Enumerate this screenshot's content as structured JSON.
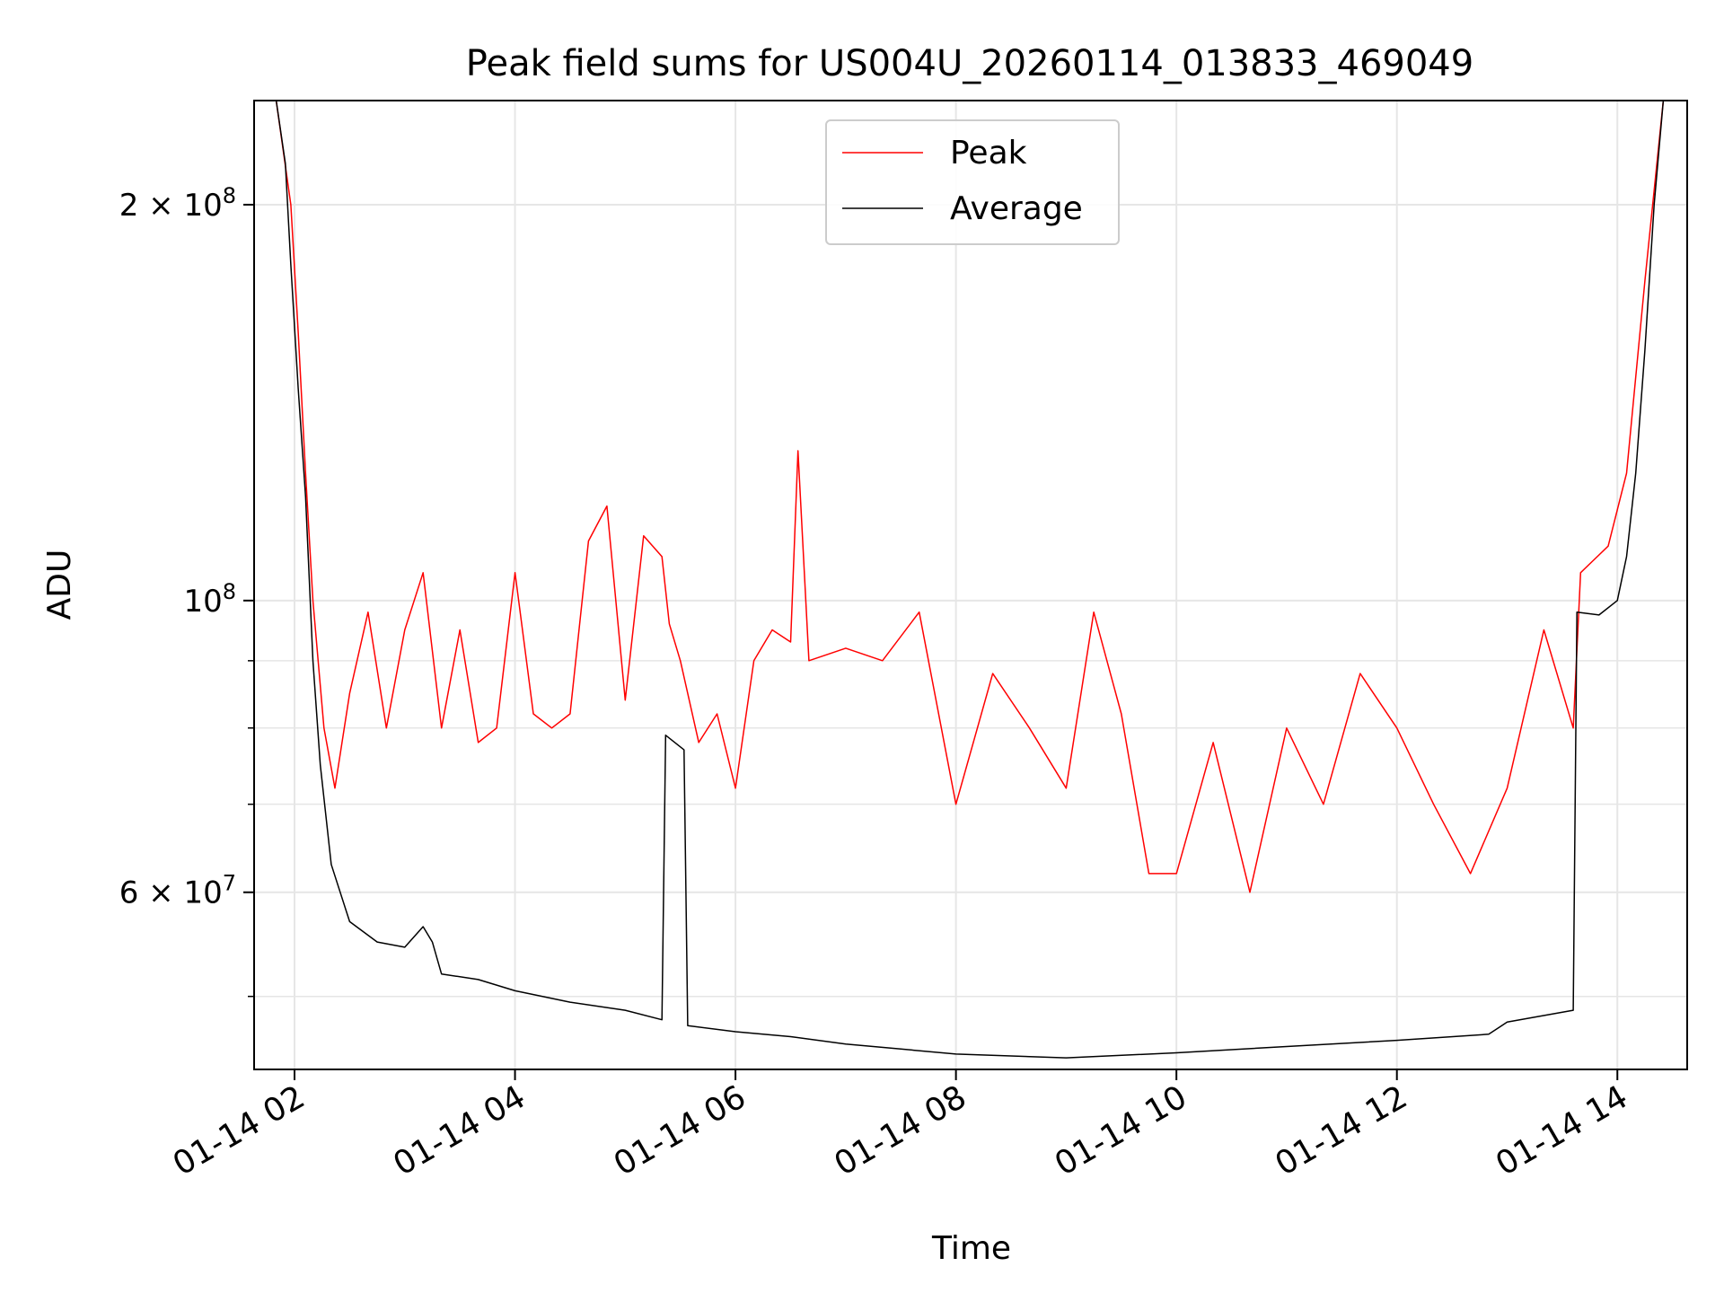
{
  "chart_data": {
    "type": "line",
    "title": "Peak field sums for US004U_20260114_013833_469049",
    "xlabel": "Time",
    "ylabel": "ADU",
    "x_ticks": [
      "01-14 02",
      "01-14 04",
      "01-14 06",
      "01-14 08",
      "01-14 10",
      "01-14 12",
      "01-14 14"
    ],
    "y_ticks": [
      {
        "value": 60000000,
        "mantissa": "6",
        "exponent": "7"
      },
      {
        "value": 100000000,
        "mantissa": "",
        "exponent": "8"
      },
      {
        "value": 200000000,
        "mantissa": "2",
        "exponent": "8"
      }
    ],
    "y_scale": "log",
    "xlim": [
      "2026-01-14 01:38",
      "2026-01-14 14:38"
    ],
    "ylim": [
      44000000,
      240000000
    ],
    "grid": true,
    "legend": "upper-center",
    "series": [
      {
        "name": "Peak",
        "color": "#ff0000",
        "points": [
          [
            "2026-01-14 01:50",
            240000000
          ],
          [
            "2026-01-14 01:58",
            200000000
          ],
          [
            "2026-01-14 02:02",
            160000000
          ],
          [
            "2026-01-14 02:06",
            125000000
          ],
          [
            "2026-01-14 02:10",
            100000000
          ],
          [
            "2026-01-14 02:16",
            80000000
          ],
          [
            "2026-01-14 02:22",
            72000000
          ],
          [
            "2026-01-14 02:30",
            85000000
          ],
          [
            "2026-01-14 02:40",
            98000000
          ],
          [
            "2026-01-14 02:50",
            80000000
          ],
          [
            "2026-01-14 03:00",
            95000000
          ],
          [
            "2026-01-14 03:10",
            105000000
          ],
          [
            "2026-01-14 03:20",
            80000000
          ],
          [
            "2026-01-14 03:30",
            95000000
          ],
          [
            "2026-01-14 03:40",
            78000000
          ],
          [
            "2026-01-14 03:50",
            80000000
          ],
          [
            "2026-01-14 04:00",
            105000000
          ],
          [
            "2026-01-14 04:10",
            82000000
          ],
          [
            "2026-01-14 04:20",
            80000000
          ],
          [
            "2026-01-14 04:30",
            82000000
          ],
          [
            "2026-01-14 04:40",
            111000000
          ],
          [
            "2026-01-14 04:50",
            118000000
          ],
          [
            "2026-01-14 05:00",
            84000000
          ],
          [
            "2026-01-14 05:10",
            112000000
          ],
          [
            "2026-01-14 05:20",
            108000000
          ],
          [
            "2026-01-14 05:24",
            96000000
          ],
          [
            "2026-01-14 05:30",
            90000000
          ],
          [
            "2026-01-14 05:40",
            78000000
          ],
          [
            "2026-01-14 05:50",
            82000000
          ],
          [
            "2026-01-14 06:00",
            72000000
          ],
          [
            "2026-01-14 06:10",
            90000000
          ],
          [
            "2026-01-14 06:20",
            95000000
          ],
          [
            "2026-01-14 06:30",
            93000000
          ],
          [
            "2026-01-14 06:34",
            130000000
          ],
          [
            "2026-01-14 06:40",
            90000000
          ],
          [
            "2026-01-14 07:00",
            92000000
          ],
          [
            "2026-01-14 07:20",
            90000000
          ],
          [
            "2026-01-14 07:40",
            98000000
          ],
          [
            "2026-01-14 08:00",
            70000000
          ],
          [
            "2026-01-14 08:20",
            88000000
          ],
          [
            "2026-01-14 08:40",
            80000000
          ],
          [
            "2026-01-14 09:00",
            72000000
          ],
          [
            "2026-01-14 09:15",
            98000000
          ],
          [
            "2026-01-14 09:30",
            82000000
          ],
          [
            "2026-01-14 09:45",
            62000000
          ],
          [
            "2026-01-14 10:00",
            62000000
          ],
          [
            "2026-01-14 10:20",
            78000000
          ],
          [
            "2026-01-14 10:40",
            60000000
          ],
          [
            "2026-01-14 11:00",
            80000000
          ],
          [
            "2026-01-14 11:20",
            70000000
          ],
          [
            "2026-01-14 11:40",
            88000000
          ],
          [
            "2026-01-14 12:00",
            80000000
          ],
          [
            "2026-01-14 12:20",
            70000000
          ],
          [
            "2026-01-14 12:40",
            62000000
          ],
          [
            "2026-01-14 13:00",
            72000000
          ],
          [
            "2026-01-14 13:20",
            95000000
          ],
          [
            "2026-01-14 13:36",
            80000000
          ],
          [
            "2026-01-14 13:40",
            105000000
          ],
          [
            "2026-01-14 13:55",
            110000000
          ],
          [
            "2026-01-14 14:05",
            125000000
          ],
          [
            "2026-01-14 14:15",
            175000000
          ],
          [
            "2026-01-14 14:25",
            240000000
          ]
        ]
      },
      {
        "name": "Average",
        "color": "#000000",
        "points": [
          [
            "2026-01-14 01:50",
            240000000
          ],
          [
            "2026-01-14 01:55",
            215000000
          ],
          [
            "2026-01-14 01:58",
            180000000
          ],
          [
            "2026-01-14 02:02",
            145000000
          ],
          [
            "2026-01-14 02:06",
            120000000
          ],
          [
            "2026-01-14 02:10",
            90000000
          ],
          [
            "2026-01-14 02:14",
            75000000
          ],
          [
            "2026-01-14 02:20",
            63000000
          ],
          [
            "2026-01-14 02:30",
            57000000
          ],
          [
            "2026-01-14 02:45",
            55000000
          ],
          [
            "2026-01-14 03:00",
            54500000
          ],
          [
            "2026-01-14 03:10",
            56500000
          ],
          [
            "2026-01-14 03:15",
            55000000
          ],
          [
            "2026-01-14 03:20",
            52000000
          ],
          [
            "2026-01-14 03:40",
            51500000
          ],
          [
            "2026-01-14 04:00",
            50500000
          ],
          [
            "2026-01-14 04:30",
            49500000
          ],
          [
            "2026-01-14 05:00",
            48800000
          ],
          [
            "2026-01-14 05:20",
            48000000
          ],
          [
            "2026-01-14 05:22",
            79000000
          ],
          [
            "2026-01-14 05:32",
            77000000
          ],
          [
            "2026-01-14 05:34",
            47500000
          ],
          [
            "2026-01-14 06:00",
            47000000
          ],
          [
            "2026-01-14 06:30",
            46600000
          ],
          [
            "2026-01-14 07:00",
            46000000
          ],
          [
            "2026-01-14 07:30",
            45600000
          ],
          [
            "2026-01-14 08:00",
            45200000
          ],
          [
            "2026-01-14 09:00",
            44900000
          ],
          [
            "2026-01-14 10:00",
            45300000
          ],
          [
            "2026-01-14 11:00",
            45800000
          ],
          [
            "2026-01-14 12:00",
            46300000
          ],
          [
            "2026-01-14 12:50",
            46800000
          ],
          [
            "2026-01-14 13:00",
            47800000
          ],
          [
            "2026-01-14 13:36",
            48800000
          ],
          [
            "2026-01-14 13:38",
            98000000
          ],
          [
            "2026-01-14 13:50",
            97500000
          ],
          [
            "2026-01-14 14:00",
            100000000
          ],
          [
            "2026-01-14 14:05",
            108000000
          ],
          [
            "2026-01-14 14:10",
            125000000
          ],
          [
            "2026-01-14 14:15",
            155000000
          ],
          [
            "2026-01-14 14:20",
            200000000
          ],
          [
            "2026-01-14 14:25",
            240000000
          ]
        ]
      }
    ]
  }
}
